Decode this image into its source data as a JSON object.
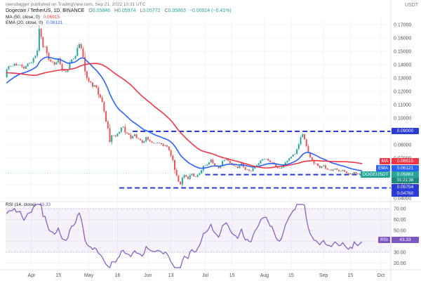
{
  "watermark": "rawsdagger published on TradingView.com, Sep 21, 2022 10:31 UTC",
  "header": {
    "symbol_title": "Dogecoin / TetherUS, 1D, BINANCE",
    "ohlc": {
      "o_label": "O",
      "o": "0.05846",
      "h_label": "H",
      "h": "0.05974",
      "l_label": "L",
      "l": "0.05772",
      "c_label": "C",
      "c": "0.05863",
      "change": "−0.00024 (−0.41%)"
    },
    "ma_legend": {
      "label": "MA (50, close, 0)",
      "value": "0.06915"
    },
    "ema_legend": {
      "label": "EMA (20, close, 0)",
      "value": "0.06121"
    }
  },
  "rsi_legend": {
    "label": "RSI (14, close)",
    "value": "43.33"
  },
  "price_scale": {
    "currency": "USDT",
    "symbol_chip": "DOGEUSDT",
    "ma_chip_label": "MA",
    "ma_chip_value": "0.06915",
    "ema_chip_label": "EMA",
    "ema_chip_value": "0.06121",
    "price_chip_value": "0.05863",
    "price_chip_countdown": "01:21:38",
    "level_chip_1": "0.09000",
    "level_chip_2": "0.05754",
    "level_chip_3": "0.04760",
    "rsi_chip_label": "RSI",
    "rsi_chip_value": "43.33"
  },
  "colors": {
    "up": "#26a69a",
    "down": "#ef5350",
    "ma": "#f23645",
    "ema": "#2962ff",
    "rsi": "#7e57c2",
    "level": "#2a3bd6",
    "grid": "#f0f3fa",
    "axis_text": "#50535e",
    "separator": "#e0e3eb",
    "watermark": "#787b86",
    "rsi_band_fill": "rgba(126,87,194,0.08)",
    "rsi_band_edge": "#b8bcc9"
  },
  "chart_data": {
    "type": "candlestick",
    "title": "DOGE/USDT daily candles with MA(50), EMA(20), RSI(14)",
    "symbol": "DOGEUSDT",
    "interval": "1D",
    "ylim": [
      0.04,
      0.175
    ],
    "price_ticks": [
      "0.17000",
      "0.16000",
      "0.15000",
      "0.14000",
      "0.13000",
      "0.12000",
      "0.11000",
      "0.10000",
      "0.09000",
      "0.08000",
      "0.07000",
      "0.06000",
      "0.05000",
      "0.04000"
    ],
    "rsi_ticks": [
      "70.00",
      "60.00",
      "50.00",
      "40.00",
      "30.00",
      "20.00"
    ],
    "rsi_bands": [
      30,
      70
    ],
    "time_labels": [
      {
        "label": "Apr",
        "day": 0
      },
      {
        "label": "15",
        "day": 14
      },
      {
        "label": "May",
        "day": 30
      },
      {
        "label": "16",
        "day": 45
      },
      {
        "label": "Jun",
        "day": 61
      },
      {
        "label": "13",
        "day": 73
      },
      {
        "label": "Jul",
        "day": 91
      },
      {
        "label": "15",
        "day": 105
      },
      {
        "label": "Aug",
        "day": 122
      },
      {
        "label": "15",
        "day": 136
      },
      {
        "label": "Sep",
        "day": 153
      },
      {
        "label": "15",
        "day": 167
      },
      {
        "label": "Oct",
        "day": 183
      }
    ],
    "prehistory": [
      [
        -63,
        0.142
      ],
      [
        -50,
        0.15
      ],
      [
        -40,
        0.128
      ],
      [
        -30,
        0.132
      ],
      [
        -20,
        0.115
      ],
      [
        -16,
        0.124
      ]
    ],
    "anchors": [
      [
        -13,
        0.136
      ],
      [
        -9,
        0.141
      ],
      [
        -5,
        0.138
      ],
      [
        -2,
        0.14
      ],
      [
        0,
        0.142
      ],
      [
        3,
        0.15
      ],
      [
        4,
        0.166
      ],
      [
        5,
        0.162
      ],
      [
        6,
        0.155
      ],
      [
        8,
        0.148
      ],
      [
        10,
        0.143
      ],
      [
        12,
        0.14
      ],
      [
        14,
        0.143
      ],
      [
        16,
        0.137
      ],
      [
        18,
        0.134
      ],
      [
        20,
        0.14
      ],
      [
        23,
        0.148
      ],
      [
        25,
        0.157
      ],
      [
        26,
        0.153
      ],
      [
        28,
        0.136
      ],
      [
        30,
        0.128
      ],
      [
        32,
        0.125
      ],
      [
        34,
        0.122
      ],
      [
        36,
        0.116
      ],
      [
        38,
        0.105
      ],
      [
        40,
        0.092
      ],
      [
        41,
        0.082
      ],
      [
        42,
        0.088
      ],
      [
        44,
        0.086
      ],
      [
        46,
        0.09
      ],
      [
        48,
        0.093
      ],
      [
        50,
        0.088
      ],
      [
        52,
        0.085
      ],
      [
        54,
        0.087
      ],
      [
        56,
        0.084
      ],
      [
        58,
        0.082
      ],
      [
        60,
        0.085
      ],
      [
        62,
        0.083
      ],
      [
        64,
        0.081
      ],
      [
        66,
        0.082
      ],
      [
        68,
        0.08
      ],
      [
        70,
        0.079
      ],
      [
        72,
        0.077
      ],
      [
        73,
        0.072
      ],
      [
        74,
        0.068
      ],
      [
        75,
        0.062
      ],
      [
        76,
        0.057
      ],
      [
        77,
        0.052
      ],
      [
        78,
        0.05
      ],
      [
        79,
        0.055
      ],
      [
        80,
        0.057
      ],
      [
        82,
        0.055
      ],
      [
        84,
        0.058
      ],
      [
        86,
        0.056
      ],
      [
        88,
        0.059
      ],
      [
        90,
        0.064
      ],
      [
        92,
        0.066
      ],
      [
        94,
        0.068
      ],
      [
        96,
        0.065
      ],
      [
        98,
        0.063
      ],
      [
        100,
        0.067
      ],
      [
        102,
        0.069
      ],
      [
        104,
        0.066
      ],
      [
        106,
        0.064
      ],
      [
        108,
        0.063
      ],
      [
        110,
        0.065
      ],
      [
        112,
        0.062
      ],
      [
        114,
        0.06
      ],
      [
        116,
        0.062
      ],
      [
        118,
        0.065
      ],
      [
        120,
        0.068
      ],
      [
        122,
        0.07
      ],
      [
        124,
        0.068
      ],
      [
        126,
        0.066
      ],
      [
        128,
        0.064
      ],
      [
        130,
        0.062
      ],
      [
        132,
        0.065
      ],
      [
        134,
        0.068
      ],
      [
        136,
        0.071
      ],
      [
        138,
        0.074
      ],
      [
        140,
        0.08
      ],
      [
        141,
        0.086
      ],
      [
        142,
        0.088
      ],
      [
        143,
        0.084
      ],
      [
        144,
        0.079
      ],
      [
        145,
        0.074
      ],
      [
        146,
        0.07
      ],
      [
        147,
        0.068
      ],
      [
        149,
        0.065
      ],
      [
        151,
        0.063
      ],
      [
        153,
        0.064
      ],
      [
        155,
        0.062
      ],
      [
        157,
        0.061
      ],
      [
        159,
        0.062
      ],
      [
        161,
        0.06
      ],
      [
        163,
        0.061
      ],
      [
        165,
        0.059
      ],
      [
        166,
        0.057
      ],
      [
        167,
        0.058
      ],
      [
        169,
        0.059
      ],
      [
        171,
        0.058
      ],
      [
        173,
        0.05863
      ]
    ],
    "last_bar": {
      "open": 0.05846,
      "high": 0.05974,
      "low": 0.05772,
      "close": 0.05863
    },
    "levels": [
      {
        "value": 0.09,
        "label": "0.09000",
        "start_day": 53
      },
      {
        "value": 0.05754,
        "label": "0.05754",
        "start_day": 91
      },
      {
        "value": 0.0476,
        "label": "0.04760",
        "start_day": 46
      }
    ],
    "indicators": [
      {
        "name": "SMA",
        "length": 50
      },
      {
        "name": "EMA",
        "length": 20
      },
      {
        "name": "RSI",
        "length": 14
      }
    ]
  }
}
